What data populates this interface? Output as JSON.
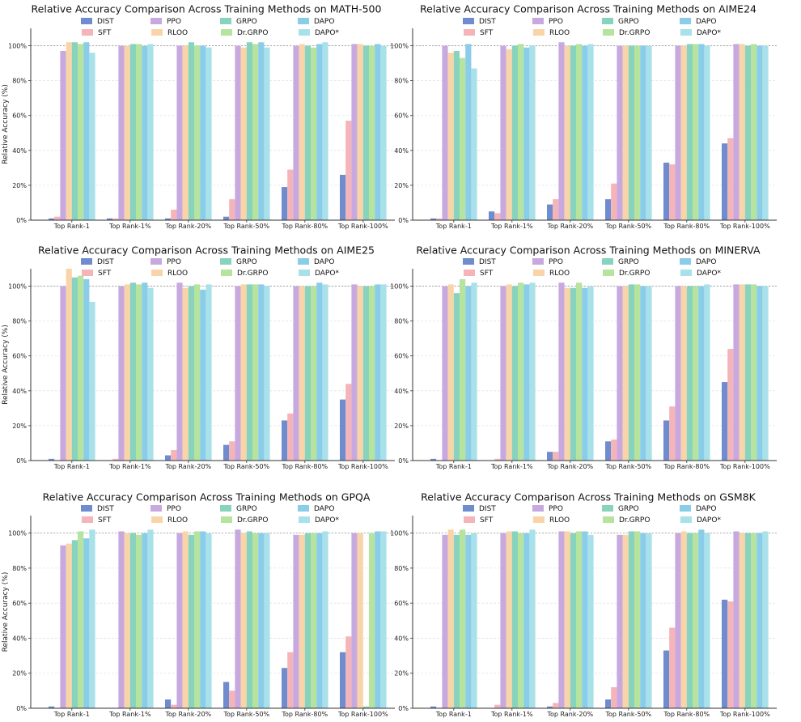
{
  "figure": {
    "legend_labels": [
      "DIST",
      "SFT",
      "PPO",
      "RLOO",
      "GRPO",
      "Dr.GRPO",
      "DAPO",
      "DAPO*"
    ],
    "colors": [
      "#6f8ccf",
      "#f4b4b8",
      "#c7a9e0",
      "#f9d4a8",
      "#88d3be",
      "#b6e39e",
      "#8acde9",
      "#a9e1ea"
    ],
    "ylabel": "Relative Accuracy (%)"
  },
  "chart_data": [
    {
      "type": "bar",
      "title": "Relative Accuracy Comparison Across Training Methods on MATH-500",
      "xlabel": "",
      "ylabel": "Relative Accuracy (%)",
      "ylim": [
        0,
        110
      ],
      "yticks": [
        "0%",
        "20%",
        "40%",
        "60%",
        "80%",
        "100%"
      ],
      "categories": [
        "Top Rank-1",
        "Top Rank-1%",
        "Top Rank-20%",
        "Top Rank-50%",
        "Top Rank-80%",
        "Top Rank-100%"
      ],
      "series": [
        {
          "name": "DIST",
          "values": [
            1,
            1,
            1,
            2,
            19,
            26
          ]
        },
        {
          "name": "SFT",
          "values": [
            2,
            1,
            6,
            12,
            29,
            57
          ]
        },
        {
          "name": "PPO",
          "values": [
            97,
            100,
            100,
            100,
            100,
            101
          ]
        },
        {
          "name": "RLOO",
          "values": [
            102,
            100,
            100,
            99,
            101,
            101
          ]
        },
        {
          "name": "GRPO",
          "values": [
            102,
            101,
            102,
            102,
            100,
            100
          ]
        },
        {
          "name": "Dr.GRPO",
          "values": [
            101,
            101,
            100,
            101,
            99,
            100
          ]
        },
        {
          "name": "DAPO",
          "values": [
            102,
            100,
            100,
            102,
            101,
            101
          ]
        },
        {
          "name": "DAPO*",
          "values": [
            96,
            101,
            99,
            99,
            102,
            100
          ]
        }
      ]
    },
    {
      "type": "bar",
      "title": "Relative Accuracy Comparison Across Training Methods on AIME24",
      "xlabel": "",
      "ylabel": "",
      "ylim": [
        0,
        110
      ],
      "yticks": [
        "0%",
        "20%",
        "40%",
        "60%",
        "80%",
        "100%"
      ],
      "categories": [
        "Top Rank-1",
        "Top Rank-1%",
        "Top Rank-20%",
        "Top Rank-50%",
        "Top Rank-80%",
        "Top Rank-100%"
      ],
      "series": [
        {
          "name": "DIST",
          "values": [
            1,
            5,
            9,
            12,
            33,
            44
          ]
        },
        {
          "name": "SFT",
          "values": [
            1,
            4,
            12,
            21,
            32,
            47
          ]
        },
        {
          "name": "PPO",
          "values": [
            100,
            100,
            102,
            100,
            100,
            101
          ]
        },
        {
          "name": "RLOO",
          "values": [
            96,
            98,
            100,
            100,
            100,
            101
          ]
        },
        {
          "name": "GRPO",
          "values": [
            97,
            100,
            100,
            100,
            101,
            100
          ]
        },
        {
          "name": "Dr.GRPO",
          "values": [
            93,
            101,
            101,
            100,
            101,
            101
          ]
        },
        {
          "name": "DAPO",
          "values": [
            101,
            99,
            100,
            100,
            101,
            100
          ]
        },
        {
          "name": "DAPO*",
          "values": [
            87,
            100,
            101,
            100,
            100,
            100
          ]
        }
      ]
    },
    {
      "type": "bar",
      "title": "Relative Accuracy Comparison Across Training Methods on AIME25",
      "xlabel": "",
      "ylabel": "Relative Accuracy (%)",
      "ylim": [
        0,
        110
      ],
      "yticks": [
        "0%",
        "20%",
        "40%",
        "60%",
        "80%",
        "100%"
      ],
      "categories": [
        "Top Rank-1",
        "Top Rank-1%",
        "Top Rank-20%",
        "Top Rank-50%",
        "Top Rank-80%",
        "Top Rank-100%"
      ],
      "series": [
        {
          "name": "DIST",
          "values": [
            1,
            0,
            3,
            9,
            23,
            35
          ]
        },
        {
          "name": "SFT",
          "values": [
            0,
            1,
            6,
            11,
            27,
            44
          ]
        },
        {
          "name": "PPO",
          "values": [
            100,
            100,
            102,
            100,
            100,
            101
          ]
        },
        {
          "name": "RLOO",
          "values": [
            110,
            101,
            99,
            101,
            100,
            100
          ]
        },
        {
          "name": "GRPO",
          "values": [
            105,
            102,
            100,
            101,
            100,
            100
          ]
        },
        {
          "name": "Dr.GRPO",
          "values": [
            106,
            101,
            101,
            101,
            100,
            100
          ]
        },
        {
          "name": "DAPO",
          "values": [
            104,
            102,
            98,
            101,
            102,
            101
          ]
        },
        {
          "name": "DAPO*",
          "values": [
            91,
            99,
            101,
            100,
            101,
            101
          ]
        }
      ]
    },
    {
      "type": "bar",
      "title": "Relative Accuracy Comparison Across Training Methods on MINERVA",
      "xlabel": "",
      "ylabel": "",
      "ylim": [
        0,
        110
      ],
      "yticks": [
        "0%",
        "20%",
        "40%",
        "60%",
        "80%",
        "100%"
      ],
      "categories": [
        "Top Rank-1",
        "Top Rank-1%",
        "Top Rank-20%",
        "Top Rank-50%",
        "Top Rank-80%",
        "Top Rank-100%"
      ],
      "series": [
        {
          "name": "DIST",
          "values": [
            1,
            0,
            5,
            11,
            23,
            45
          ]
        },
        {
          "name": "SFT",
          "values": [
            0,
            1,
            5,
            12,
            31,
            64
          ]
        },
        {
          "name": "PPO",
          "values": [
            100,
            100,
            102,
            100,
            100,
            101
          ]
        },
        {
          "name": "RLOO",
          "values": [
            101,
            101,
            99,
            100,
            100,
            101
          ]
        },
        {
          "name": "GRPO",
          "values": [
            96,
            100,
            99,
            101,
            100,
            101
          ]
        },
        {
          "name": "Dr.GRPO",
          "values": [
            104,
            102,
            102,
            101,
            100,
            101
          ]
        },
        {
          "name": "DAPO",
          "values": [
            100,
            101,
            99,
            100,
            100,
            100
          ]
        },
        {
          "name": "DAPO*",
          "values": [
            102,
            102,
            100,
            100,
            101,
            100
          ]
        }
      ]
    },
    {
      "type": "bar",
      "title": "Relative Accuracy Comparison Across Training Methods on GPQA",
      "xlabel": "",
      "ylabel": "Relative Accuracy (%)",
      "ylim": [
        0,
        110
      ],
      "yticks": [
        "0%",
        "20%",
        "40%",
        "60%",
        "80%",
        "100%"
      ],
      "categories": [
        "Top Rank-1",
        "Top Rank-1%",
        "Top Rank-20%",
        "Top Rank-50%",
        "Top Rank-80%",
        "Top Rank-100%"
      ],
      "series": [
        {
          "name": "DIST",
          "values": [
            1,
            0,
            5,
            15,
            23,
            32
          ]
        },
        {
          "name": "SFT",
          "values": [
            0,
            0,
            2,
            10,
            32,
            41
          ]
        },
        {
          "name": "PPO",
          "values": [
            93,
            101,
            100,
            102,
            99,
            100
          ]
        },
        {
          "name": "RLOO",
          "values": [
            94,
            100,
            101,
            100,
            99,
            100
          ]
        },
        {
          "name": "GRPO",
          "values": [
            96,
            100,
            99,
            101,
            100,
            1
          ]
        },
        {
          "name": "Dr.GRPO",
          "values": [
            101,
            99,
            101,
            100,
            100,
            100
          ]
        },
        {
          "name": "DAPO",
          "values": [
            97,
            100,
            101,
            100,
            100,
            101
          ]
        },
        {
          "name": "DAPO*",
          "values": [
            102,
            102,
            100,
            100,
            101,
            101
          ]
        }
      ]
    },
    {
      "type": "bar",
      "title": "Relative Accuracy Comparison Across Training Methods on GSM8K",
      "xlabel": "",
      "ylabel": "",
      "ylim": [
        0,
        110
      ],
      "yticks": [
        "0%",
        "20%",
        "40%",
        "60%",
        "80%",
        "100%"
      ],
      "categories": [
        "Top Rank-1",
        "Top Rank-1%",
        "Top Rank-20%",
        "Top Rank-50%",
        "Top Rank-80%",
        "Top Rank-100%"
      ],
      "series": [
        {
          "name": "DIST",
          "values": [
            1,
            0,
            1,
            5,
            33,
            62
          ]
        },
        {
          "name": "SFT",
          "values": [
            0,
            2,
            3,
            12,
            46,
            61
          ]
        },
        {
          "name": "PPO",
          "values": [
            99,
            100,
            101,
            99,
            100,
            101
          ]
        },
        {
          "name": "RLOO",
          "values": [
            102,
            101,
            101,
            99,
            101,
            100
          ]
        },
        {
          "name": "GRPO",
          "values": [
            99,
            101,
            100,
            101,
            100,
            100
          ]
        },
        {
          "name": "Dr.GRPO",
          "values": [
            102,
            100,
            101,
            101,
            100,
            100
          ]
        },
        {
          "name": "DAPO",
          "values": [
            99,
            100,
            101,
            100,
            102,
            100
          ]
        },
        {
          "name": "DAPO*",
          "values": [
            100,
            102,
            99,
            100,
            100,
            101
          ]
        }
      ]
    }
  ]
}
